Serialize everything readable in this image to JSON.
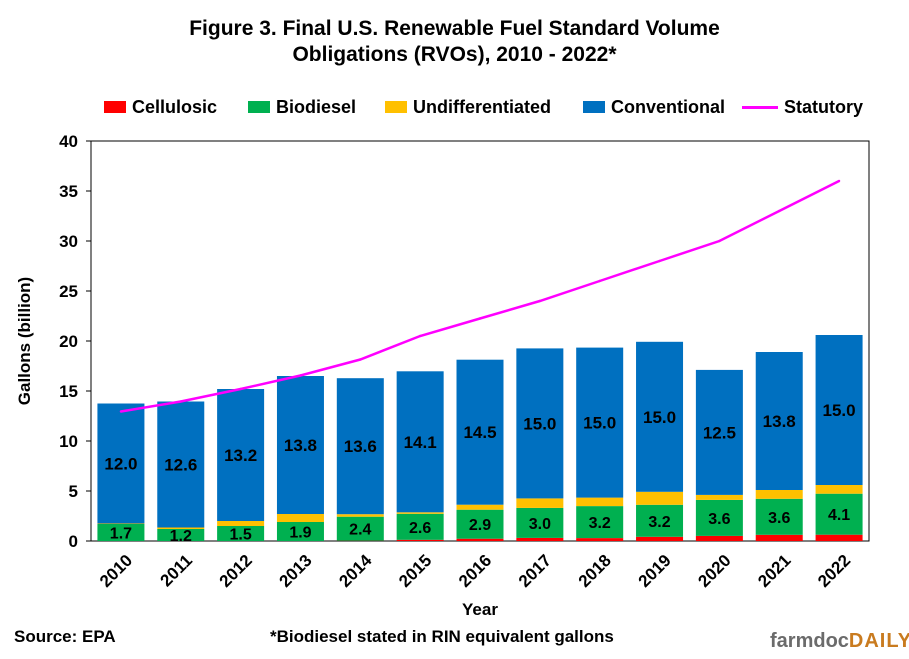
{
  "title_lines": [
    "Figure 3. Final U.S. Renewable Fuel Standard Volume",
    "Obligations (RVOs),  2010 - 2022*"
  ],
  "source": "Source: EPA",
  "footnote": "*Biodiesel stated in RIN equivalent gallons",
  "brand": {
    "part1": "farmdoc",
    "part2": "DAILY"
  },
  "colors": {
    "cellulosic": "#ff0000",
    "biodiesel": "#00b050",
    "undifferentiated": "#ffc000",
    "conventional": "#0070c0",
    "statutory": "#ff00ff"
  },
  "chart_data": {
    "type": "bar",
    "stacked": true,
    "title": "Figure 3. Final U.S. Renewable Fuel Standard Volume Obligations (RVOs),  2010 - 2022*",
    "xlabel": "Year",
    "ylabel": "Gallons (billion)",
    "ylim": [
      0,
      40
    ],
    "yticks": [
      "0",
      "5",
      "10",
      "15",
      "20",
      "25",
      "30",
      "35",
      "40"
    ],
    "categories": [
      "2010",
      "2011",
      "2012",
      "2013",
      "2014",
      "2015",
      "2016",
      "2017",
      "2018",
      "2019",
      "2020",
      "2021",
      "2022"
    ],
    "series": [
      {
        "name": "Cellulosic",
        "color": "#ff0000",
        "values": [
          0.0,
          0.0,
          0.0,
          0.0,
          0.03,
          0.12,
          0.23,
          0.31,
          0.29,
          0.42,
          0.51,
          0.62,
          0.63
        ]
      },
      {
        "name": "Biodiesel",
        "color": "#00b050",
        "values": [
          1.7,
          1.2,
          1.5,
          1.9,
          2.4,
          2.6,
          2.9,
          3.0,
          3.2,
          3.2,
          3.6,
          3.6,
          4.1
        ],
        "labels": [
          "1.7",
          "1.2",
          "1.5",
          "1.9",
          "2.4",
          "2.6",
          "2.9",
          "3.0",
          "3.2",
          "3.2",
          "3.6",
          "3.6",
          "4.1"
        ]
      },
      {
        "name": "Undifferentiated",
        "color": "#ffc000",
        "values": [
          0.05,
          0.15,
          0.5,
          0.8,
          0.25,
          0.15,
          0.5,
          0.95,
          0.85,
          1.3,
          0.5,
          0.88,
          0.87
        ]
      },
      {
        "name": "Conventional",
        "color": "#0070c0",
        "values": [
          12.0,
          12.6,
          13.2,
          13.8,
          13.6,
          14.1,
          14.5,
          15.0,
          15.0,
          15.0,
          12.5,
          13.8,
          15.0
        ],
        "labels": [
          "12.0",
          "12.6",
          "13.2",
          "13.8",
          "13.6",
          "14.1",
          "14.5",
          "15.0",
          "15.0",
          "15.0",
          "12.5",
          "13.8",
          "15.0"
        ]
      }
    ],
    "line_series": {
      "name": "Statutory",
      "color": "#ff00ff",
      "values": [
        12.95,
        13.95,
        15.2,
        16.55,
        18.15,
        20.5,
        22.25,
        24.0,
        26.0,
        28.0,
        30.0,
        33.0,
        36.0
      ]
    },
    "grid": false,
    "legend": "top"
  }
}
